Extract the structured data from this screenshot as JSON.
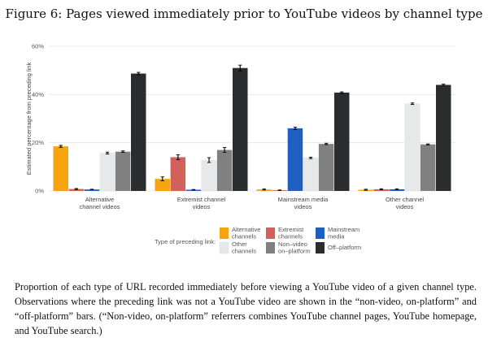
{
  "figure_title": "Figure 6: Pages viewed immediately prior to YouTube videos by channel type",
  "caption": "Proportion of each type of URL recorded immediately before viewing a YouTube video of a given channel type. Observations where the preceding link was not a YouTube video are shown in the “non-video, on-platform” and “off-platform” bars. (“Non-video, on-platform” referrers combines YouTube channel pages, YouTube homepage, and YouTube search.)",
  "chart_data": {
    "type": "bar",
    "ylabel": "Estimated percentage from preceding link",
    "ylim": [
      0,
      60
    ],
    "yticks": [
      "0%",
      "20%",
      "40%",
      "60%"
    ],
    "ytick_values": [
      0,
      20,
      40,
      60
    ],
    "grid": true,
    "legend_title": "Type of preceding link:",
    "legend_position": "bottom",
    "categories": [
      [
        "Alternative",
        "channel videos"
      ],
      [
        "Extremist channel",
        "videos"
      ],
      [
        "Mainstream media",
        "videos"
      ],
      [
        "Other channel",
        "videos"
      ]
    ],
    "series": [
      {
        "name": [
          "Alternative",
          "channels"
        ],
        "color": "#f5a30f",
        "values": [
          18.5,
          5.0,
          0.6,
          0.5
        ],
        "err": [
          0.4,
          0.8,
          0.2,
          0.2
        ]
      },
      {
        "name": [
          "Extremist",
          "channels"
        ],
        "color": "#d2605b",
        "values": [
          0.8,
          14.0,
          0.3,
          0.7
        ],
        "err": [
          0.2,
          1.0,
          0.1,
          0.2
        ]
      },
      {
        "name": [
          "Mainstream",
          "media"
        ],
        "color": "#1f5fbf",
        "values": [
          0.6,
          0.5,
          26.0,
          0.7
        ],
        "err": [
          0.1,
          0.1,
          0.5,
          0.2
        ]
      },
      {
        "name": [
          "Other",
          "channels"
        ],
        "color": "#e6e8ea",
        "values": [
          15.7,
          12.8,
          13.7,
          36.2
        ],
        "err": [
          0.4,
          1.0,
          0.3,
          0.3
        ]
      },
      {
        "name": [
          "Non–video",
          "on–platform"
        ],
        "color": "#808080",
        "values": [
          16.3,
          17.0,
          19.5,
          19.3
        ],
        "err": [
          0.3,
          1.0,
          0.3,
          0.2
        ]
      },
      {
        "name": [
          "Off–platform"
        ],
        "color": "#2b2c2e",
        "values": [
          48.7,
          51.0,
          40.8,
          44.0
        ],
        "err": [
          0.5,
          1.2,
          0.3,
          0.3
        ]
      }
    ]
  }
}
